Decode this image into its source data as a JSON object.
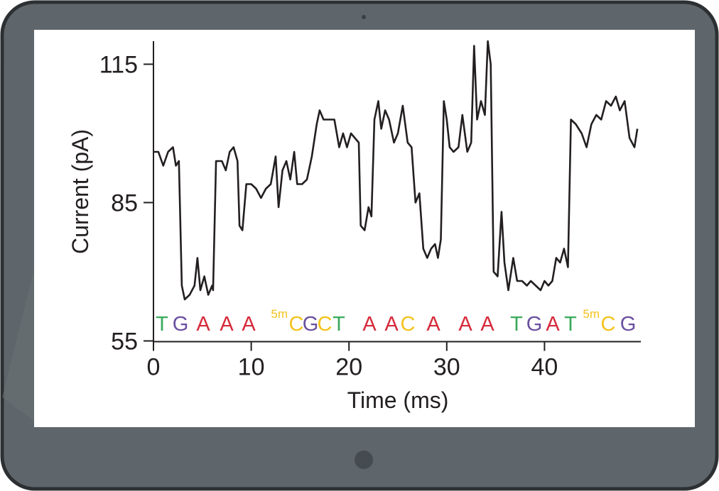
{
  "chart_data": {
    "type": "line",
    "xlabel": "Time (ms)",
    "ylabel": "Current (pA)",
    "xlim": [
      0,
      50
    ],
    "ylim": [
      55,
      120
    ],
    "xticks": [
      0,
      10,
      20,
      30,
      40
    ],
    "yticks": [
      55,
      85,
      115
    ],
    "color": "#231f20",
    "x": [
      0,
      0.5,
      1,
      1.5,
      2,
      2.3,
      2.6,
      2.9,
      3.2,
      3.7,
      4.2,
      4.5,
      4.8,
      5.2,
      5.6,
      6,
      6.1,
      6.4,
      7,
      7.4,
      7.8,
      8.2,
      8.6,
      8.8,
      9.1,
      9.5,
      10,
      10.5,
      11,
      11.5,
      12,
      12.5,
      12.8,
      13.2,
      13.6,
      14,
      14.4,
      14.7,
      15.2,
      15.7,
      16.2,
      16.7,
      17,
      17.4,
      18,
      18.5,
      19,
      19.4,
      19.8,
      20.2,
      20.6,
      21,
      21.2,
      21.6,
      22,
      22.3,
      22.6,
      23,
      23.3,
      23.7,
      24.1,
      24.6,
      25,
      25.5,
      26,
      26.4,
      26.8,
      27.2,
      27.6,
      28,
      28.4,
      28.8,
      29.1,
      29.4,
      29.7,
      30,
      30.3,
      30.7,
      31.2,
      31.6,
      32.1,
      32.5,
      32.8,
      33.1,
      33.5,
      33.9,
      34.2,
      34.5,
      34.8,
      35.2,
      35.6,
      35.9,
      36.3,
      36.8,
      37.2,
      37.7,
      38.2,
      38.6,
      39.1,
      39.6,
      40,
      40.4,
      40.8,
      41.2,
      41.6,
      42,
      42.4,
      42.7,
      43.2,
      43.8,
      44.3,
      44.8,
      45.3,
      45.8,
      46.3,
      46.8,
      47.3,
      47.7,
      48.2,
      48.7,
      49.2,
      49.5
    ],
    "values": [
      96,
      96,
      93,
      96,
      97,
      93,
      94,
      67,
      64,
      65,
      67,
      73,
      66,
      69,
      65,
      67,
      66,
      94,
      94,
      92,
      96,
      97,
      94,
      80,
      79,
      89,
      89,
      88,
      86,
      88,
      89,
      95,
      84,
      92,
      94,
      90,
      96,
      89,
      89,
      90,
      95,
      102,
      105,
      103,
      103,
      103,
      97,
      100,
      97,
      100,
      99,
      98,
      80,
      79,
      84,
      82,
      103,
      107,
      101,
      105,
      103,
      98,
      100,
      106,
      98,
      97,
      85,
      87,
      75,
      73,
      75,
      76,
      73,
      77,
      107,
      103,
      97,
      96,
      97,
      104,
      96,
      98,
      119,
      103,
      107,
      104,
      120,
      115,
      70,
      69,
      83,
      72,
      66,
      73,
      68,
      68,
      67,
      68,
      67,
      66,
      68,
      67,
      68,
      73,
      72,
      75,
      71,
      103,
      102,
      100,
      97,
      102,
      104,
      103,
      107,
      106,
      108,
      105,
      107,
      99,
      97,
      101
    ],
    "sequence": [
      {
        "text": "T",
        "color": "#3aaa5c"
      },
      {
        "text": "G",
        "color": "#6a4fa0"
      },
      {
        "text": "A",
        "color": "#d62a3a"
      },
      {
        "text": "A",
        "color": "#d62a3a"
      },
      {
        "text": "A",
        "color": "#d62a3a"
      },
      {
        "text": "C",
        "superscript": "5m",
        "color": "#f5c21b"
      },
      {
        "text": "G",
        "color": "#6a4fa0"
      },
      {
        "text": "C",
        "color": "#f5c21b"
      },
      {
        "text": "T",
        "color": "#3aaa5c"
      },
      {
        "text": "A",
        "color": "#d62a3a"
      },
      {
        "text": "A",
        "color": "#d62a3a"
      },
      {
        "text": "C",
        "color": "#f5c21b"
      },
      {
        "text": "A",
        "color": "#d62a3a"
      },
      {
        "text": "A",
        "color": "#d62a3a"
      },
      {
        "text": "A",
        "color": "#d62a3a"
      },
      {
        "text": "T",
        "color": "#3aaa5c"
      },
      {
        "text": "G",
        "color": "#6a4fa0"
      },
      {
        "text": "A",
        "color": "#d62a3a"
      },
      {
        "text": "T",
        "color": "#3aaa5c"
      },
      {
        "text": "C",
        "superscript": "5m",
        "color": "#f5c21b"
      },
      {
        "text": "G",
        "color": "#6a4fa0"
      }
    ]
  }
}
